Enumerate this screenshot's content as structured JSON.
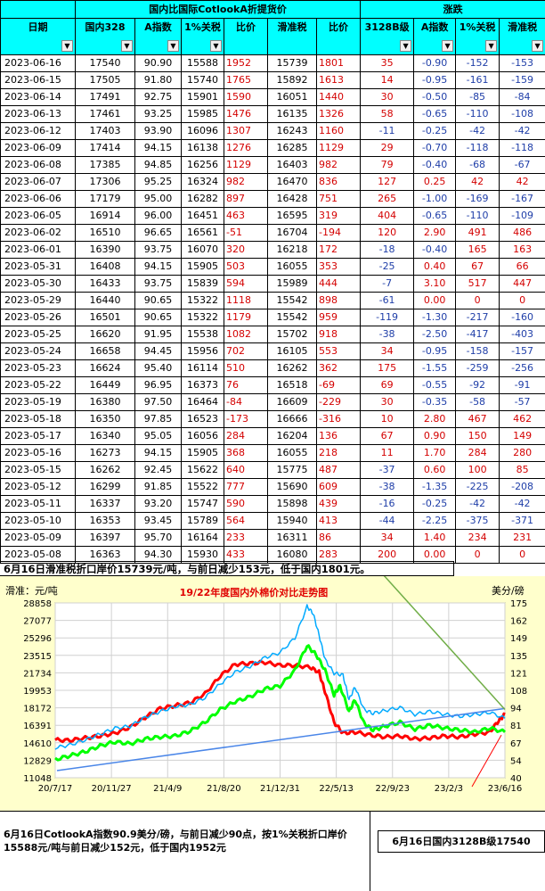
{
  "table": {
    "group_headers": {
      "date": "",
      "mid": "国内比国际CotlookA折提货价",
      "change": "涨跌"
    },
    "columns": [
      "日期",
      "国内328",
      "A指数",
      "1%关税",
      "比价",
      "滑准税",
      "比价",
      "3128B级",
      "A指数",
      "1%关税",
      "滑准税"
    ],
    "rows": [
      [
        "2023-06-16",
        "17540",
        "90.90",
        "15588",
        "1952",
        "15739",
        "1801",
        "35",
        "-0.90",
        "-152",
        "-153"
      ],
      [
        "2023-06-15",
        "17505",
        "91.80",
        "15740",
        "1765",
        "15892",
        "1613",
        "14",
        "-0.95",
        "-161",
        "-159"
      ],
      [
        "2023-06-14",
        "17491",
        "92.75",
        "15901",
        "1590",
        "16051",
        "1440",
        "30",
        "-0.50",
        "-85",
        "-84"
      ],
      [
        "2023-06-13",
        "17461",
        "93.25",
        "15985",
        "1476",
        "16135",
        "1326",
        "58",
        "-0.65",
        "-110",
        "-108"
      ],
      [
        "2023-06-12",
        "17403",
        "93.90",
        "16096",
        "1307",
        "16243",
        "1160",
        "-11",
        "-0.25",
        "-42",
        "-42"
      ],
      [
        "2023-06-09",
        "17414",
        "94.15",
        "16138",
        "1276",
        "16285",
        "1129",
        "29",
        "-0.70",
        "-118",
        "-118"
      ],
      [
        "2023-06-08",
        "17385",
        "94.85",
        "16256",
        "1129",
        "16403",
        "982",
        "79",
        "-0.40",
        "-68",
        "-67"
      ],
      [
        "2023-06-07",
        "17306",
        "95.25",
        "16324",
        "982",
        "16470",
        "836",
        "127",
        "0.25",
        "42",
        "42"
      ],
      [
        "2023-06-06",
        "17179",
        "95.00",
        "16282",
        "897",
        "16428",
        "751",
        "265",
        "-1.00",
        "-169",
        "-167"
      ],
      [
        "2023-06-05",
        "16914",
        "96.00",
        "16451",
        "463",
        "16595",
        "319",
        "404",
        "-0.65",
        "-110",
        "-109"
      ],
      [
        "2023-06-02",
        "16510",
        "96.65",
        "16561",
        "-51",
        "16704",
        "-194",
        "120",
        "2.90",
        "491",
        "486"
      ],
      [
        "2023-06-01",
        "16390",
        "93.75",
        "16070",
        "320",
        "16218",
        "172",
        "-18",
        "-0.40",
        "165",
        "163"
      ],
      [
        "2023-05-31",
        "16408",
        "94.15",
        "15905",
        "503",
        "16055",
        "353",
        "-25",
        "0.40",
        "67",
        "66"
      ],
      [
        "2023-05-30",
        "16433",
        "93.75",
        "15839",
        "594",
        "15989",
        "444",
        "-7",
        "3.10",
        "517",
        "447"
      ],
      [
        "2023-05-29",
        "16440",
        "90.65",
        "15322",
        "1118",
        "15542",
        "898",
        "-61",
        "0.00",
        "0",
        "0"
      ],
      [
        "2023-05-26",
        "16501",
        "90.65",
        "15322",
        "1179",
        "15542",
        "959",
        "-119",
        "-1.30",
        "-217",
        "-160"
      ],
      [
        "2023-05-25",
        "16620",
        "91.95",
        "15538",
        "1082",
        "15702",
        "918",
        "-38",
        "-2.50",
        "-417",
        "-403"
      ],
      [
        "2023-05-24",
        "16658",
        "94.45",
        "15956",
        "702",
        "16105",
        "553",
        "34",
        "-0.95",
        "-158",
        "-157"
      ],
      [
        "2023-05-23",
        "16624",
        "95.40",
        "16114",
        "510",
        "16262",
        "362",
        "175",
        "-1.55",
        "-259",
        "-256"
      ],
      [
        "2023-05-22",
        "16449",
        "96.95",
        "16373",
        "76",
        "16518",
        "-69",
        "69",
        "-0.55",
        "-92",
        "-91"
      ],
      [
        "2023-05-19",
        "16380",
        "97.50",
        "16464",
        "-84",
        "16609",
        "-229",
        "30",
        "-0.35",
        "-58",
        "-57"
      ],
      [
        "2023-05-18",
        "16350",
        "97.85",
        "16523",
        "-173",
        "16666",
        "-316",
        "10",
        "2.80",
        "467",
        "462"
      ],
      [
        "2023-05-17",
        "16340",
        "95.05",
        "16056",
        "284",
        "16204",
        "136",
        "67",
        "0.90",
        "150",
        "149"
      ],
      [
        "2023-05-16",
        "16273",
        "94.15",
        "15905",
        "368",
        "16055",
        "218",
        "11",
        "1.70",
        "284",
        "280"
      ],
      [
        "2023-05-15",
        "16262",
        "92.45",
        "15622",
        "640",
        "15775",
        "487",
        "-37",
        "0.60",
        "100",
        "85"
      ],
      [
        "2023-05-12",
        "16299",
        "91.85",
        "15522",
        "777",
        "15690",
        "609",
        "-38",
        "-1.35",
        "-225",
        "-208"
      ],
      [
        "2023-05-11",
        "16337",
        "93.20",
        "15747",
        "590",
        "15898",
        "439",
        "-16",
        "-0.25",
        "-42",
        "-42"
      ],
      [
        "2023-05-10",
        "16353",
        "93.45",
        "15789",
        "564",
        "15940",
        "413",
        "-44",
        "-2.25",
        "-375",
        "-371"
      ],
      [
        "2023-05-09",
        "16397",
        "95.70",
        "16164",
        "233",
        "16311",
        "86",
        "34",
        "1.40",
        "234",
        "231"
      ],
      [
        "2023-05-08",
        "16363",
        "94.30",
        "15930",
        "433",
        "16080",
        "283",
        "200",
        "0.00",
        "0",
        "0"
      ]
    ]
  },
  "caption_top": "6月16日滑准税折口岸价15739元/吨，与前日减少153元，低于国内1801元。",
  "note_left": "6月16日CotlookA指数90.9美分/磅，与前日减少90点，按1%关税折口岸价15588元/吨与前日减少152元，低于国内1952元",
  "note_right": "6月16日国内3128B级17540",
  "chart_data": {
    "type": "line",
    "title": "19/22年度国内外棉价对比走势图",
    "ylabel_left": "滑准：元/吨",
    "ylabel_right": "美分/磅",
    "x_tick_labels": [
      "20/7/17",
      "20/11/27",
      "21/4/9",
      "21/8/20",
      "21/12/31",
      "22/5/13",
      "22/9/23",
      "23/2/3",
      "23/6/16"
    ],
    "y_left_ticks": [
      "28858",
      "27077",
      "25296",
      "23515",
      "21734",
      "19953",
      "18172",
      "16391",
      "14610",
      "12829",
      "11048"
    ],
    "y_right_ticks": [
      "175",
      "162",
      "149",
      "135",
      "121",
      "108",
      "94",
      "81",
      "67",
      "54",
      "40"
    ],
    "ylim_left": [
      11048,
      28858
    ],
    "ylim_right": [
      40,
      175
    ],
    "grid": true,
    "series": [
      {
        "color": "#ff0000",
        "axis": "left",
        "points": [
          [
            0,
            14900
          ],
          [
            5,
            14850
          ],
          [
            10,
            15100
          ],
          [
            15,
            15300
          ],
          [
            20,
            15600
          ],
          [
            25,
            16200
          ],
          [
            30,
            17200
          ],
          [
            35,
            18100
          ],
          [
            40,
            18400
          ],
          [
            45,
            18700
          ],
          [
            50,
            19600
          ],
          [
            55,
            21400
          ],
          [
            60,
            22600
          ],
          [
            65,
            22700
          ],
          [
            70,
            22800
          ],
          [
            75,
            22500
          ],
          [
            80,
            22500
          ],
          [
            85,
            22300
          ],
          [
            88,
            21800
          ],
          [
            90,
            19800
          ],
          [
            93,
            16700
          ],
          [
            96,
            15600
          ],
          [
            100,
            15700
          ],
          [
            105,
            15400
          ],
          [
            110,
            15200
          ],
          [
            115,
            15300
          ],
          [
            120,
            15000
          ],
          [
            125,
            15100
          ],
          [
            130,
            15300
          ],
          [
            135,
            15200
          ],
          [
            140,
            15500
          ],
          [
            145,
            15700
          ],
          [
            148,
            16900
          ],
          [
            150,
            17500
          ]
        ]
      },
      {
        "color": "#00ff00",
        "axis": "left",
        "points": [
          [
            0,
            12900
          ],
          [
            5,
            13300
          ],
          [
            10,
            13700
          ],
          [
            15,
            14300
          ],
          [
            20,
            14700
          ],
          [
            25,
            14500
          ],
          [
            30,
            15000
          ],
          [
            35,
            15200
          ],
          [
            40,
            15300
          ],
          [
            45,
            15800
          ],
          [
            50,
            16700
          ],
          [
            55,
            18000
          ],
          [
            60,
            18800
          ],
          [
            65,
            19300
          ],
          [
            70,
            20100
          ],
          [
            75,
            20400
          ],
          [
            80,
            22000
          ],
          [
            84,
            24500
          ],
          [
            87,
            23600
          ],
          [
            90,
            22000
          ],
          [
            93,
            19500
          ],
          [
            95,
            20400
          ],
          [
            98,
            17800
          ],
          [
            100,
            19000
          ],
          [
            103,
            16600
          ],
          [
            106,
            15900
          ],
          [
            110,
            16300
          ],
          [
            115,
            16700
          ],
          [
            120,
            16000
          ],
          [
            125,
            16400
          ],
          [
            130,
            16100
          ],
          [
            135,
            15900
          ],
          [
            140,
            15700
          ],
          [
            145,
            16100
          ],
          [
            150,
            15700
          ]
        ]
      },
      {
        "color": "#00aaff",
        "axis": "left",
        "points": [
          [
            0,
            14100
          ],
          [
            5,
            14400
          ],
          [
            10,
            14900
          ],
          [
            15,
            15500
          ],
          [
            20,
            16100
          ],
          [
            25,
            16300
          ],
          [
            30,
            17200
          ],
          [
            35,
            17800
          ],
          [
            40,
            18300
          ],
          [
            45,
            18500
          ],
          [
            50,
            19200
          ],
          [
            55,
            20600
          ],
          [
            60,
            21800
          ],
          [
            65,
            22400
          ],
          [
            70,
            23300
          ],
          [
            75,
            23800
          ],
          [
            80,
            25300
          ],
          [
            84,
            28500
          ],
          [
            86,
            27800
          ],
          [
            88,
            25600
          ],
          [
            90,
            23100
          ],
          [
            93,
            21700
          ],
          [
            96,
            21500
          ],
          [
            98,
            19000
          ],
          [
            100,
            20300
          ],
          [
            103,
            18000
          ],
          [
            106,
            17600
          ],
          [
            110,
            17900
          ],
          [
            115,
            18200
          ],
          [
            120,
            17500
          ],
          [
            125,
            17800
          ],
          [
            130,
            17500
          ],
          [
            135,
            17300
          ],
          [
            140,
            17500
          ],
          [
            145,
            17700
          ],
          [
            150,
            17100
          ]
        ]
      }
    ]
  }
}
